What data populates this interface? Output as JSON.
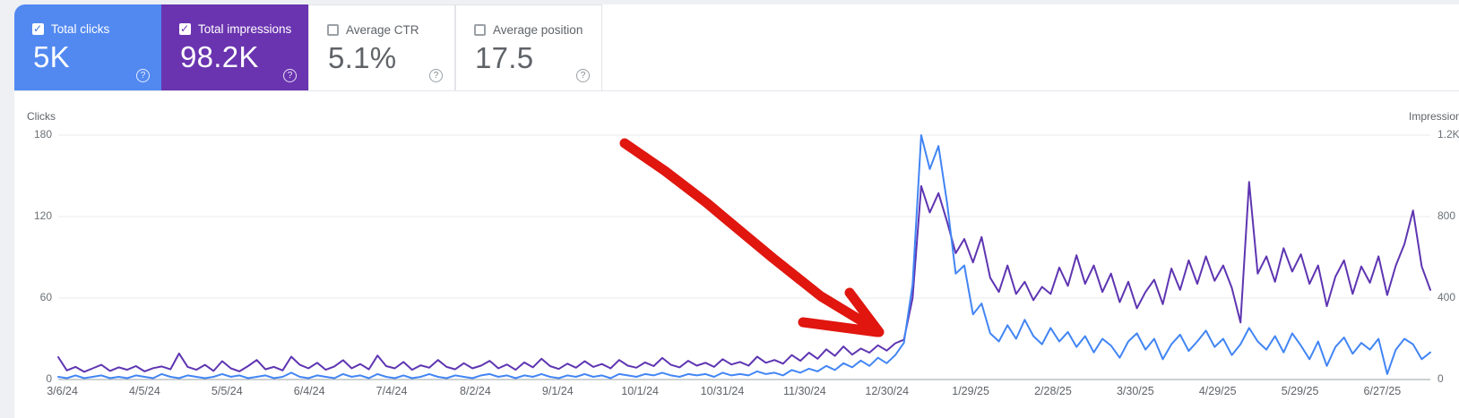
{
  "cards": [
    {
      "label": "Total clicks",
      "value": "5K",
      "selected": true,
      "color": "#5289f1"
    },
    {
      "label": "Total impressions",
      "value": "98.2K",
      "selected": true,
      "color": "#6a34b0"
    },
    {
      "label": "Average CTR",
      "value": "5.1%",
      "selected": false
    },
    {
      "label": "Average position",
      "value": "17.5",
      "selected": false
    }
  ],
  "chart_data": {
    "type": "line",
    "grid": true,
    "left_axis": {
      "title": "Clicks",
      "max": 180,
      "ticks": [
        "0",
        "60",
        "120",
        "180"
      ]
    },
    "right_axis": {
      "title": "Impressions",
      "max": 1200,
      "ticks": [
        "0",
        "400",
        "800",
        "1.2K"
      ]
    },
    "x_ticks": [
      {
        "label": "3/6/24",
        "pos": 0.003
      },
      {
        "label": "4/5/24",
        "pos": 0.063
      },
      {
        "label": "5/5/24",
        "pos": 0.123
      },
      {
        "label": "6/4/24",
        "pos": 0.183
      },
      {
        "label": "7/4/24",
        "pos": 0.243
      },
      {
        "label": "8/2/24",
        "pos": 0.304
      },
      {
        "label": "9/1/24",
        "pos": 0.364
      },
      {
        "label": "10/1/24",
        "pos": 0.424
      },
      {
        "label": "10/31/24",
        "pos": 0.484
      },
      {
        "label": "11/30/24",
        "pos": 0.544
      },
      {
        "label": "12/30/24",
        "pos": 0.604
      },
      {
        "label": "1/29/25",
        "pos": 0.665
      },
      {
        "label": "2/28/25",
        "pos": 0.725
      },
      {
        "label": "3/30/25",
        "pos": 0.785
      },
      {
        "label": "4/29/25",
        "pos": 0.845
      },
      {
        "label": "5/29/25",
        "pos": 0.905
      },
      {
        "label": "6/27/25",
        "pos": 0.965
      }
    ],
    "series": [
      {
        "name": "Total impressions",
        "color": "#5e35b1",
        "axis": "right",
        "axis_max": 1200,
        "values": [
          110,
          45,
          62,
          38,
          55,
          72,
          42,
          60,
          48,
          66,
          40,
          56,
          64,
          50,
          128,
          62,
          48,
          72,
          42,
          90,
          55,
          40,
          66,
          96,
          50,
          62,
          45,
          112,
          72,
          55,
          82,
          48,
          64,
          95,
          55,
          76,
          50,
          118,
          66,
          55,
          86,
          48,
          70,
          58,
          96,
          62,
          50,
          80,
          55,
          68,
          92,
          55,
          74,
          48,
          84,
          60,
          102,
          66,
          52,
          78,
          58,
          90,
          62,
          76,
          55,
          96,
          68,
          58,
          84,
          66,
          106,
          72,
          60,
          92,
          68,
          82,
          62,
          100,
          74,
          86,
          68,
          112,
          82,
          96,
          78,
          120,
          92,
          132,
          102,
          148,
          116,
          162,
          122,
          152,
          132,
          168,
          142,
          178,
          195,
          400,
          950,
          820,
          915,
          775,
          620,
          690,
          575,
          700,
          500,
          430,
          560,
          420,
          480,
          390,
          455,
          420,
          550,
          460,
          610,
          470,
          560,
          430,
          520,
          380,
          480,
          350,
          430,
          490,
          370,
          545,
          440,
          585,
          470,
          605,
          485,
          560,
          450,
          280,
          970,
          520,
          605,
          480,
          645,
          530,
          615,
          470,
          560,
          360,
          505,
          585,
          420,
          555,
          475,
          605,
          415,
          560,
          665,
          830,
          555,
          440
        ]
      },
      {
        "name": "Total clicks",
        "color": "#4285f4",
        "axis": "left",
        "axis_max": 180,
        "values": [
          2,
          1,
          3,
          1,
          2,
          3,
          1,
          2,
          1,
          3,
          2,
          1,
          4,
          2,
          1,
          3,
          2,
          1,
          2,
          4,
          2,
          3,
          1,
          2,
          3,
          1,
          2,
          5,
          2,
          1,
          3,
          2,
          1,
          4,
          2,
          3,
          1,
          4,
          2,
          1,
          3,
          1,
          2,
          4,
          2,
          1,
          3,
          2,
          1,
          3,
          4,
          2,
          3,
          1,
          3,
          2,
          4,
          2,
          1,
          3,
          2,
          4,
          2,
          3,
          1,
          4,
          3,
          2,
          4,
          3,
          5,
          3,
          2,
          4,
          3,
          4,
          2,
          5,
          3,
          4,
          3,
          6,
          4,
          5,
          3,
          7,
          5,
          8,
          6,
          10,
          7,
          12,
          9,
          14,
          10,
          16,
          12,
          18,
          27,
          70,
          180,
          155,
          172,
          130,
          78,
          84,
          48,
          56,
          34,
          28,
          40,
          30,
          44,
          32,
          26,
          38,
          28,
          35,
          24,
          32,
          20,
          30,
          25,
          16,
          28,
          34,
          22,
          30,
          15,
          26,
          33,
          21,
          28,
          36,
          24,
          30,
          18,
          26,
          38,
          28,
          22,
          32,
          20,
          34,
          25,
          15,
          28,
          10,
          24,
          31,
          19,
          27,
          22,
          30,
          4,
          22,
          30,
          26,
          15,
          20
        ]
      }
    ]
  },
  "annotation": {
    "type": "hand-drawn-arrow",
    "color": "#e0160f",
    "stroke_width": 11,
    "strokes": [
      [
        [
          697,
          160
        ],
        [
          742,
          191
        ],
        [
          789,
          227
        ],
        [
          808,
          243
        ],
        [
          862,
          288
        ],
        [
          916,
          331
        ],
        [
          977,
          368
        ]
      ],
      [
        [
          948,
          327
        ],
        [
          981,
          371
        ]
      ],
      [
        [
          896,
          360
        ],
        [
          979,
          371
        ]
      ]
    ]
  }
}
